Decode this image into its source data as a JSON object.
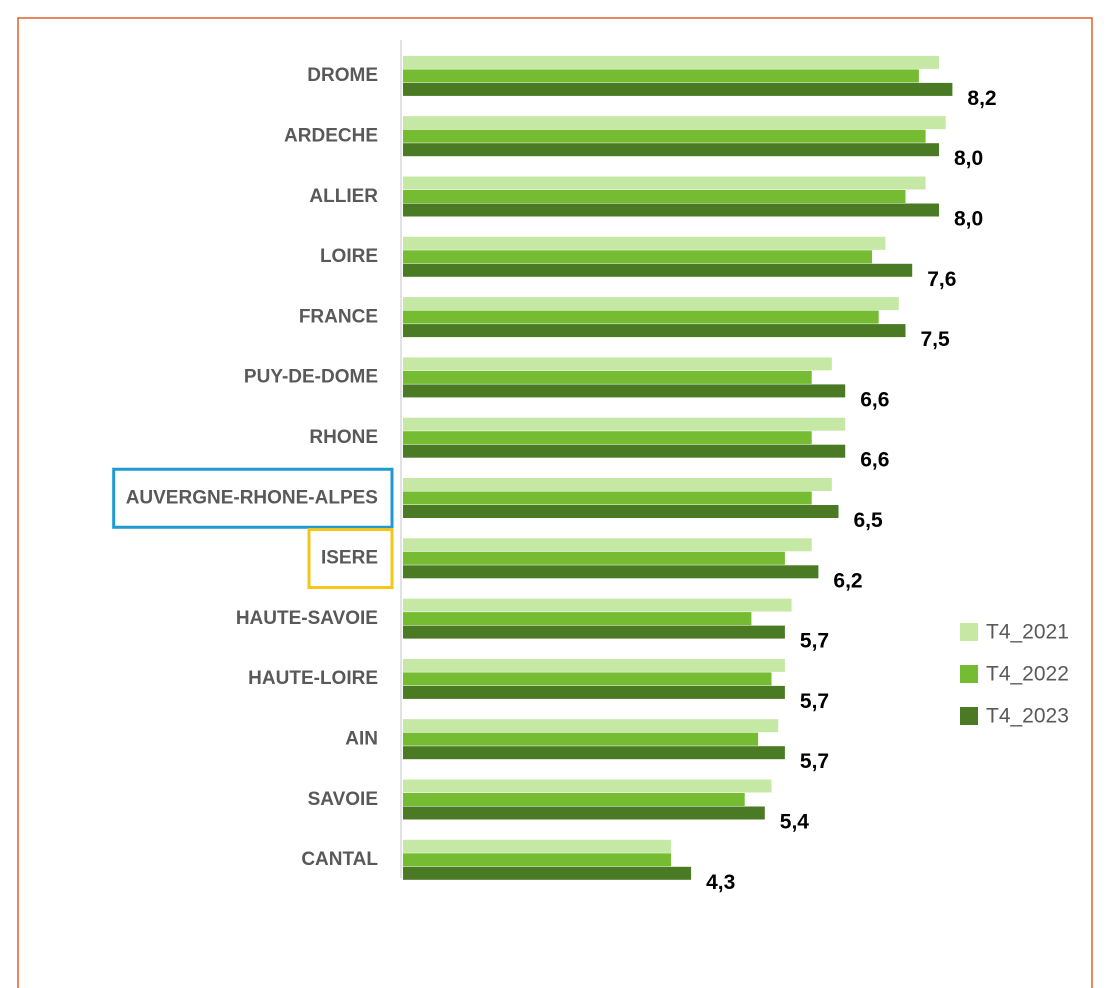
{
  "chart_data": {
    "type": "hbar",
    "categories": [
      "DROME",
      "ARDECHE",
      "ALLIER",
      "LOIRE",
      "FRANCE",
      "PUY-DE-DOME",
      "RHONE",
      "AUVERGNE-RHONE-ALPES",
      "ISERE",
      "HAUTE-SAVOIE",
      "HAUTE-LOIRE",
      "AIN",
      "SAVOIE",
      "CANTAL"
    ],
    "series": [
      {
        "name": "T4_2021",
        "color": "#c5e8a5",
        "values": [
          8.0,
          8.1,
          7.8,
          7.2,
          7.4,
          6.4,
          6.6,
          6.4,
          6.1,
          5.8,
          5.7,
          5.6,
          5.5,
          4.0
        ]
      },
      {
        "name": "T4_2022",
        "color": "#76bc32",
        "values": [
          7.7,
          7.8,
          7.5,
          7.0,
          7.1,
          6.1,
          6.1,
          6.1,
          5.7,
          5.2,
          5.5,
          5.3,
          5.1,
          4.0
        ]
      },
      {
        "name": "T4_2023",
        "color": "#4a7a23",
        "values": [
          8.2,
          8.0,
          8.0,
          7.6,
          7.5,
          6.6,
          6.6,
          6.5,
          6.2,
          5.7,
          5.7,
          5.7,
          5.4,
          4.3
        ],
        "value_labels": [
          "8,2",
          "8,0",
          "8,0",
          "7,6",
          "7,5",
          "6,6",
          "6,6",
          "6,5",
          "6,2",
          "5,7",
          "5,7",
          "5,7",
          "5,4",
          "4,3"
        ]
      }
    ],
    "xlim": [
      0,
      10
    ],
    "legend": "right",
    "highlights": [
      {
        "category": 7,
        "color": "#1f9bd1"
      },
      {
        "category": 8,
        "color": "#f5c518"
      }
    ]
  }
}
